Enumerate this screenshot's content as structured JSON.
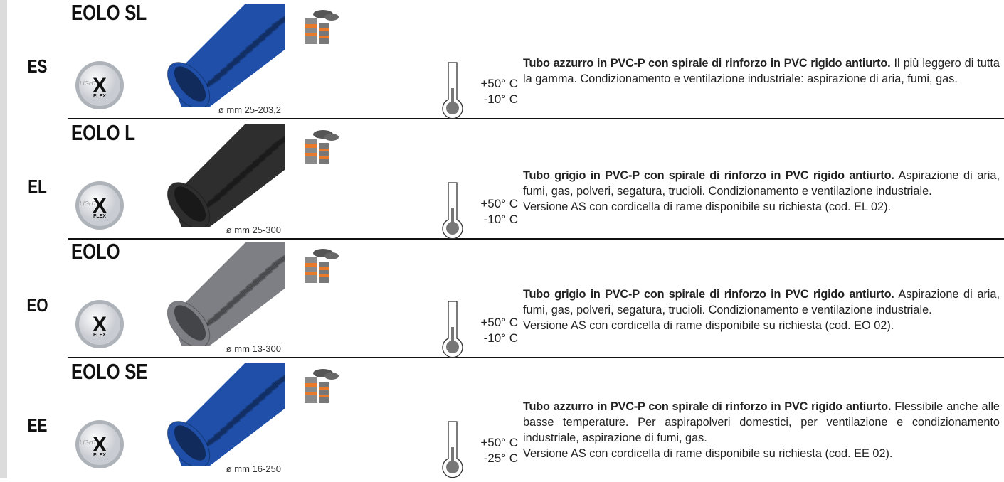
{
  "products": [
    {
      "code": "ES",
      "name": "EOLO SL",
      "tube_color": "#1f4fa8",
      "badge": {
        "light": "LIGHT",
        "mark": "X",
        "flex": "FLEX"
      },
      "diameter": "ø mm 25-203,2",
      "temp_max": "+50° C",
      "temp_min": "-10° C",
      "description_bold": "Tubo azzurro in PVC-P con spirale di rinforzo in PVC rigido antiurto.",
      "description": " Il più leggero di tutta la gamma. Condizionamento e ventilazione industriale: aspirazione di aria, fumi, gas."
    },
    {
      "code": "EL",
      "name": "EOLO L",
      "tube_color": "#2e2e2e",
      "badge": {
        "light": "LIGHT",
        "mark": "X",
        "flex": "FLEX"
      },
      "diameter": "ø mm 25-300",
      "temp_max": "+50° C",
      "temp_min": "-10° C",
      "description_bold": "Tubo grigio in PVC-P con spirale di rinforzo in PVC rigido antiurto.",
      "description": " Aspirazione di aria, fumi, gas, polveri, segatura, trucioli. Condizionamento e ventilazione industriale.",
      "note": "Versione AS con cordicella di rame disponibile su richiesta (cod. EL 02)."
    },
    {
      "code": "EO",
      "name": "EOLO",
      "tube_color": "#7d7f84",
      "badge": {
        "mark": "X",
        "flex": "FLEX"
      },
      "diameter": "ø mm 13-300",
      "temp_max": "+50° C",
      "temp_min": "-10° C",
      "description_bold": "Tubo grigio in PVC-P con spirale di rinforzo in PVC rigido antiurto.",
      "description": " Aspirazione di aria, fumi, gas, polveri, segatura, trucioli. Condizionamento e ventilazione industriale.",
      "note": "Versione AS con cordicella di rame disponibile su richiesta (cod. EO 02)."
    },
    {
      "code": "EE",
      "name": "EOLO SE",
      "tube_color": "#1f4fa8",
      "badge": {
        "light": "LIGHT",
        "mark": "X",
        "flex": "FLEX"
      },
      "diameter": "ø mm 16-250",
      "temp_max": "+50° C",
      "temp_min": "-25° C",
      "description_bold": "Tubo azzurro in PVC-P con spirale di rinforzo in PVC rigido antiurto.",
      "description": " Flessibile anche alle basse temperature. Per aspirapolveri domestici, per ventilazione e condizionamento industriale, aspirazione di fumi, gas.",
      "note": "Versione AS con cordicella di rame disponibile su richiesta (cod. EE 02)."
    }
  ]
}
